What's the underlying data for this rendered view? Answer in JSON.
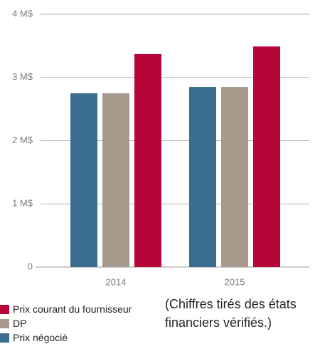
{
  "chart_data": {
    "type": "bar",
    "categories": [
      "2014",
      "2015"
    ],
    "series": [
      {
        "name": "Prix négocié",
        "color": "#3b6d8e",
        "values": [
          2.75,
          2.85
        ]
      },
      {
        "name": "DP",
        "color": "#a79a8b",
        "values": [
          2.75,
          2.85
        ]
      },
      {
        "name": "Prix courant du fournisseur",
        "color": "#b60539",
        "values": [
          3.37,
          3.49
        ]
      }
    ],
    "ylim": [
      0,
      4
    ],
    "yticks": [
      0,
      {
        "value": 1,
        "label": "1 M$"
      },
      {
        "value": 2,
        "label": "2 M$"
      },
      {
        "value": 3,
        "label": "3 M$"
      },
      {
        "value": 4,
        "label": "4 M$"
      }
    ],
    "grid": true,
    "annotation": "(Chiffres tirés des états financiers vérifiés.)"
  }
}
